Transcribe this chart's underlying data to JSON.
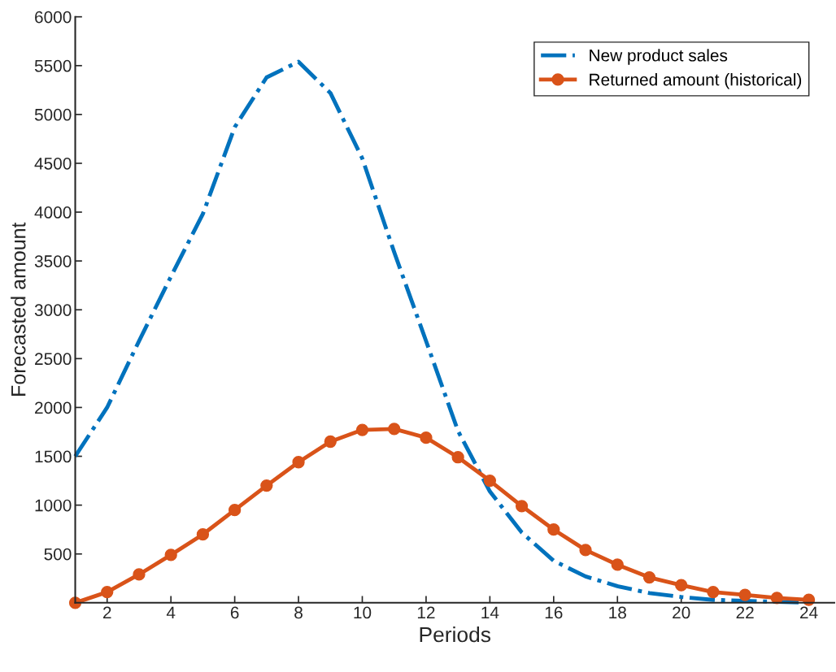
{
  "chart_data": {
    "type": "line",
    "xlabel": "Periods",
    "ylabel": "Forecasted amount",
    "x": [
      1,
      2,
      3,
      4,
      5,
      6,
      7,
      8,
      9,
      10,
      11,
      12,
      13,
      14,
      15,
      16,
      17,
      18,
      19,
      20,
      21,
      22,
      23,
      24
    ],
    "series": [
      {
        "name": "New product sales",
        "color": "#0072bd",
        "line_style": "dashdot",
        "marker": "none",
        "values": [
          1500,
          2000,
          2680,
          3340,
          3980,
          4870,
          5380,
          5540,
          5220,
          4550,
          3590,
          2680,
          1760,
          1140,
          720,
          430,
          270,
          170,
          100,
          60,
          30,
          20,
          10,
          0
        ]
      },
      {
        "name": "Returned amount (historical)",
        "color": "#d95319",
        "line_style": "solid",
        "marker": "circle",
        "values": [
          0,
          110,
          290,
          490,
          700,
          950,
          1200,
          1440,
          1650,
          1770,
          1780,
          1690,
          1490,
          1250,
          990,
          750,
          540,
          390,
          260,
          180,
          110,
          80,
          50,
          30
        ]
      }
    ],
    "xlim": [
      1,
      24.8
    ],
    "xticks": [
      2,
      4,
      6,
      8,
      10,
      12,
      14,
      16,
      18,
      20,
      22,
      24
    ],
    "ylim": [
      0,
      6000
    ],
    "yticks": [
      500,
      1000,
      1500,
      2000,
      2500,
      3000,
      3500,
      4000,
      4500,
      5000,
      5500,
      6000
    ],
    "grid": false,
    "legend": "top right"
  }
}
